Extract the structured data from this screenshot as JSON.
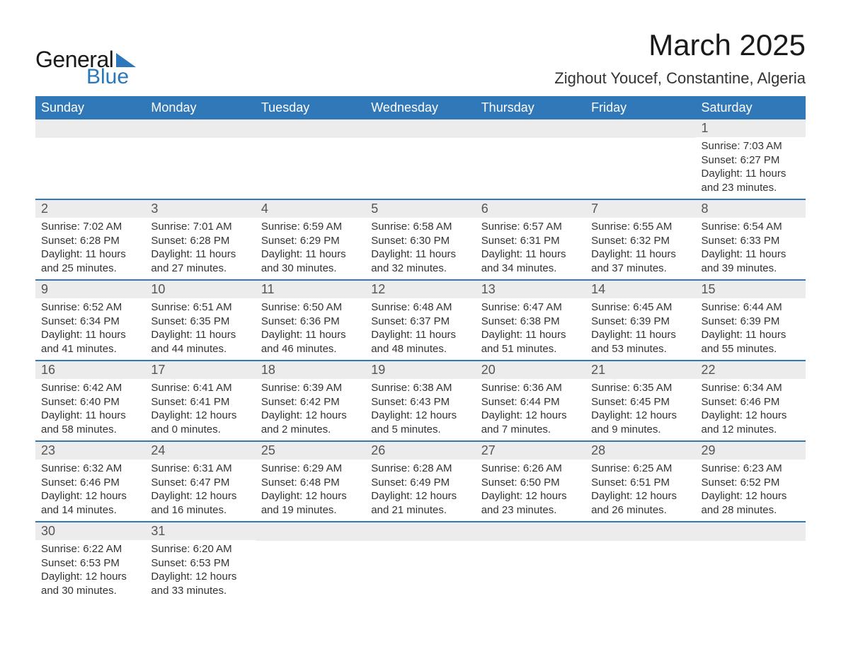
{
  "brand": {
    "word1": "General",
    "word2": "Blue",
    "accent_color": "#2a78bb"
  },
  "title": "March 2025",
  "location": "Zighout Youcef, Constantine, Algeria",
  "colors": {
    "header_bg": "#3178b8",
    "header_text": "#ffffff",
    "daynum_bg": "#ececec",
    "daynum_text": "#555555",
    "body_text": "#333333",
    "row_divider": "#3178b8",
    "background": "#ffffff"
  },
  "typography": {
    "title_fontsize": 42,
    "location_fontsize": 22,
    "header_fontsize": 18,
    "daynum_fontsize": 18,
    "cell_fontsize": 15
  },
  "day_names": [
    "Sunday",
    "Monday",
    "Tuesday",
    "Wednesday",
    "Thursday",
    "Friday",
    "Saturday"
  ],
  "weeks": [
    [
      null,
      null,
      null,
      null,
      null,
      null,
      {
        "n": "1",
        "sr": "Sunrise: 7:03 AM",
        "ss": "Sunset: 6:27 PM",
        "dl1": "Daylight: 11 hours",
        "dl2": "and 23 minutes."
      }
    ],
    [
      {
        "n": "2",
        "sr": "Sunrise: 7:02 AM",
        "ss": "Sunset: 6:28 PM",
        "dl1": "Daylight: 11 hours",
        "dl2": "and 25 minutes."
      },
      {
        "n": "3",
        "sr": "Sunrise: 7:01 AM",
        "ss": "Sunset: 6:28 PM",
        "dl1": "Daylight: 11 hours",
        "dl2": "and 27 minutes."
      },
      {
        "n": "4",
        "sr": "Sunrise: 6:59 AM",
        "ss": "Sunset: 6:29 PM",
        "dl1": "Daylight: 11 hours",
        "dl2": "and 30 minutes."
      },
      {
        "n": "5",
        "sr": "Sunrise: 6:58 AM",
        "ss": "Sunset: 6:30 PM",
        "dl1": "Daylight: 11 hours",
        "dl2": "and 32 minutes."
      },
      {
        "n": "6",
        "sr": "Sunrise: 6:57 AM",
        "ss": "Sunset: 6:31 PM",
        "dl1": "Daylight: 11 hours",
        "dl2": "and 34 minutes."
      },
      {
        "n": "7",
        "sr": "Sunrise: 6:55 AM",
        "ss": "Sunset: 6:32 PM",
        "dl1": "Daylight: 11 hours",
        "dl2": "and 37 minutes."
      },
      {
        "n": "8",
        "sr": "Sunrise: 6:54 AM",
        "ss": "Sunset: 6:33 PM",
        "dl1": "Daylight: 11 hours",
        "dl2": "and 39 minutes."
      }
    ],
    [
      {
        "n": "9",
        "sr": "Sunrise: 6:52 AM",
        "ss": "Sunset: 6:34 PM",
        "dl1": "Daylight: 11 hours",
        "dl2": "and 41 minutes."
      },
      {
        "n": "10",
        "sr": "Sunrise: 6:51 AM",
        "ss": "Sunset: 6:35 PM",
        "dl1": "Daylight: 11 hours",
        "dl2": "and 44 minutes."
      },
      {
        "n": "11",
        "sr": "Sunrise: 6:50 AM",
        "ss": "Sunset: 6:36 PM",
        "dl1": "Daylight: 11 hours",
        "dl2": "and 46 minutes."
      },
      {
        "n": "12",
        "sr": "Sunrise: 6:48 AM",
        "ss": "Sunset: 6:37 PM",
        "dl1": "Daylight: 11 hours",
        "dl2": "and 48 minutes."
      },
      {
        "n": "13",
        "sr": "Sunrise: 6:47 AM",
        "ss": "Sunset: 6:38 PM",
        "dl1": "Daylight: 11 hours",
        "dl2": "and 51 minutes."
      },
      {
        "n": "14",
        "sr": "Sunrise: 6:45 AM",
        "ss": "Sunset: 6:39 PM",
        "dl1": "Daylight: 11 hours",
        "dl2": "and 53 minutes."
      },
      {
        "n": "15",
        "sr": "Sunrise: 6:44 AM",
        "ss": "Sunset: 6:39 PM",
        "dl1": "Daylight: 11 hours",
        "dl2": "and 55 minutes."
      }
    ],
    [
      {
        "n": "16",
        "sr": "Sunrise: 6:42 AM",
        "ss": "Sunset: 6:40 PM",
        "dl1": "Daylight: 11 hours",
        "dl2": "and 58 minutes."
      },
      {
        "n": "17",
        "sr": "Sunrise: 6:41 AM",
        "ss": "Sunset: 6:41 PM",
        "dl1": "Daylight: 12 hours",
        "dl2": "and 0 minutes."
      },
      {
        "n": "18",
        "sr": "Sunrise: 6:39 AM",
        "ss": "Sunset: 6:42 PM",
        "dl1": "Daylight: 12 hours",
        "dl2": "and 2 minutes."
      },
      {
        "n": "19",
        "sr": "Sunrise: 6:38 AM",
        "ss": "Sunset: 6:43 PM",
        "dl1": "Daylight: 12 hours",
        "dl2": "and 5 minutes."
      },
      {
        "n": "20",
        "sr": "Sunrise: 6:36 AM",
        "ss": "Sunset: 6:44 PM",
        "dl1": "Daylight: 12 hours",
        "dl2": "and 7 minutes."
      },
      {
        "n": "21",
        "sr": "Sunrise: 6:35 AM",
        "ss": "Sunset: 6:45 PM",
        "dl1": "Daylight: 12 hours",
        "dl2": "and 9 minutes."
      },
      {
        "n": "22",
        "sr": "Sunrise: 6:34 AM",
        "ss": "Sunset: 6:46 PM",
        "dl1": "Daylight: 12 hours",
        "dl2": "and 12 minutes."
      }
    ],
    [
      {
        "n": "23",
        "sr": "Sunrise: 6:32 AM",
        "ss": "Sunset: 6:46 PM",
        "dl1": "Daylight: 12 hours",
        "dl2": "and 14 minutes."
      },
      {
        "n": "24",
        "sr": "Sunrise: 6:31 AM",
        "ss": "Sunset: 6:47 PM",
        "dl1": "Daylight: 12 hours",
        "dl2": "and 16 minutes."
      },
      {
        "n": "25",
        "sr": "Sunrise: 6:29 AM",
        "ss": "Sunset: 6:48 PM",
        "dl1": "Daylight: 12 hours",
        "dl2": "and 19 minutes."
      },
      {
        "n": "26",
        "sr": "Sunrise: 6:28 AM",
        "ss": "Sunset: 6:49 PM",
        "dl1": "Daylight: 12 hours",
        "dl2": "and 21 minutes."
      },
      {
        "n": "27",
        "sr": "Sunrise: 6:26 AM",
        "ss": "Sunset: 6:50 PM",
        "dl1": "Daylight: 12 hours",
        "dl2": "and 23 minutes."
      },
      {
        "n": "28",
        "sr": "Sunrise: 6:25 AM",
        "ss": "Sunset: 6:51 PM",
        "dl1": "Daylight: 12 hours",
        "dl2": "and 26 minutes."
      },
      {
        "n": "29",
        "sr": "Sunrise: 6:23 AM",
        "ss": "Sunset: 6:52 PM",
        "dl1": "Daylight: 12 hours",
        "dl2": "and 28 minutes."
      }
    ],
    [
      {
        "n": "30",
        "sr": "Sunrise: 6:22 AM",
        "ss": "Sunset: 6:53 PM",
        "dl1": "Daylight: 12 hours",
        "dl2": "and 30 minutes."
      },
      {
        "n": "31",
        "sr": "Sunrise: 6:20 AM",
        "ss": "Sunset: 6:53 PM",
        "dl1": "Daylight: 12 hours",
        "dl2": "and 33 minutes."
      },
      null,
      null,
      null,
      null,
      null
    ]
  ]
}
